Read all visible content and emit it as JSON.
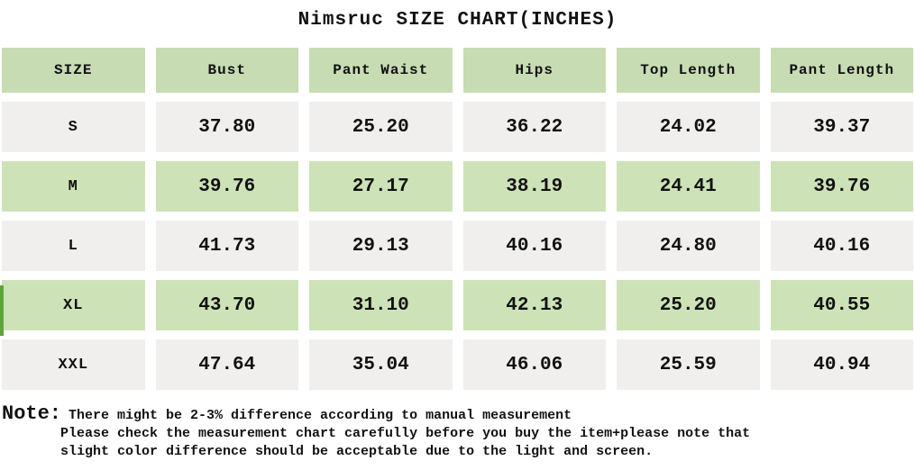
{
  "title": "Nimsruc SIZE CHART(INCHES)",
  "table": {
    "headers": [
      "SIZE",
      "Bust",
      "Pant Waist",
      "Hips",
      "Top Length",
      "Pant Length"
    ],
    "rows": [
      {
        "size": "S",
        "values": [
          "37.80",
          "25.20",
          "36.22",
          "24.02",
          "39.37"
        ],
        "shade": "gray"
      },
      {
        "size": "M",
        "values": [
          "39.76",
          "27.17",
          "38.19",
          "24.41",
          "39.76"
        ],
        "shade": "green"
      },
      {
        "size": "L",
        "values": [
          "41.73",
          "29.13",
          "40.16",
          "24.80",
          "40.16"
        ],
        "shade": "gray"
      },
      {
        "size": "XL",
        "values": [
          "43.70",
          "31.10",
          "42.13",
          "25.20",
          "40.55"
        ],
        "shade": "green"
      },
      {
        "size": "XXL",
        "values": [
          "47.64",
          "35.04",
          "46.06",
          "25.59",
          "40.94"
        ],
        "shade": "gray"
      }
    ]
  },
  "note": {
    "label": "Note:",
    "lines": [
      "There might be 2-3% difference according to manual measurement",
      "Please check the measurement chart carefully before you buy the item+please note that",
      "slight color difference should be acceptable due to the light and screen."
    ]
  },
  "colors": {
    "header_green": "#c7dcb3",
    "row_green": "#cde3b7",
    "row_gray": "#f0efed",
    "accent_dark_green": "#5fa33b",
    "text": "#111111",
    "background": "#ffffff"
  }
}
